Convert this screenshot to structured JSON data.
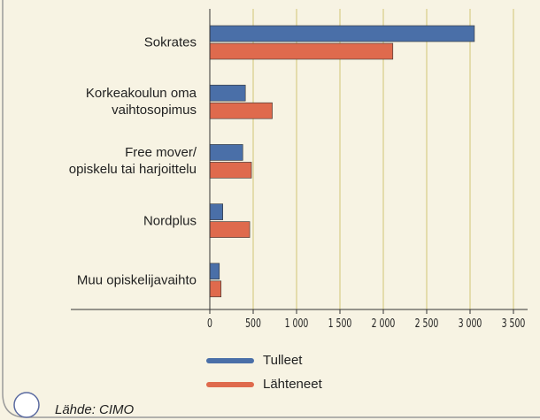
{
  "chart_data": {
    "type": "bar",
    "orientation": "horizontal",
    "categories": [
      "Sokrates",
      "Korkeakoulun oma\nvaihtosopimus",
      "Free mover/\nopiskelu tai harjoittelu",
      "Nordplus",
      "Muu opiskelijavaihto"
    ],
    "series": [
      {
        "name": "Tulleet",
        "color": "#4a6fa8",
        "values": [
          3050,
          410,
          380,
          150,
          110
        ]
      },
      {
        "name": "Lähteneet",
        "color": "#df6a4d",
        "values": [
          2110,
          720,
          480,
          460,
          130
        ]
      }
    ],
    "xlim": [
      0,
      3500
    ],
    "xticks": [
      0,
      500,
      {
        "value": 1000,
        "label": "1 000"
      },
      {
        "value": 1500,
        "label": "1 500"
      },
      {
        "value": 2000,
        "label": "2 000"
      },
      {
        "value": 2500,
        "label": "2 500"
      },
      {
        "value": 3000,
        "label": "3 000"
      },
      {
        "value": 3500,
        "label": "3 500"
      }
    ],
    "grid": true,
    "source": "Lähde: CIMO"
  }
}
